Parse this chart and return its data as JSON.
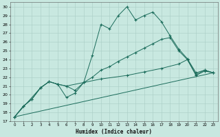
{
  "bg_color": "#c8e8e0",
  "grid_color": "#a8ccc4",
  "line_color": "#1a6b5a",
  "xlabel": "Humidex (Indice chaleur)",
  "xlim": [
    -0.5,
    23.5
  ],
  "ylim": [
    17,
    30.5
  ],
  "xticks": [
    0,
    1,
    2,
    3,
    4,
    5,
    6,
    7,
    8,
    9,
    10,
    11,
    12,
    13,
    14,
    15,
    16,
    17,
    18,
    19,
    20,
    21,
    22,
    23
  ],
  "yticks": [
    17,
    18,
    19,
    20,
    21,
    22,
    23,
    24,
    25,
    26,
    27,
    28,
    29,
    30
  ],
  "line1_x": [
    0,
    1,
    2,
    3,
    4,
    5,
    6,
    7,
    8,
    9,
    10,
    11,
    12,
    13,
    14,
    15,
    16,
    17,
    18,
    19,
    20,
    21,
    22,
    23
  ],
  "line1_y": [
    17.5,
    18.7,
    19.5,
    20.8,
    21.5,
    21.2,
    19.7,
    20.2,
    21.4,
    24.5,
    28.0,
    27.5,
    29.0,
    30.0,
    28.5,
    29.0,
    29.4,
    28.3,
    26.7,
    25.2,
    24.1,
    22.5,
    22.8,
    22.5
  ],
  "line2_x": [
    0,
    1,
    2,
    3,
    4,
    5,
    6,
    7,
    8,
    9,
    10,
    11,
    12,
    13,
    14,
    15,
    16,
    17,
    18,
    19,
    20,
    21,
    22,
    23
  ],
  "line2_y": [
    17.5,
    18.7,
    19.5,
    20.8,
    21.5,
    21.2,
    21.0,
    20.5,
    21.4,
    22.0,
    22.8,
    23.2,
    23.8,
    24.3,
    24.8,
    25.3,
    25.8,
    26.3,
    26.5,
    25.0,
    24.0,
    22.3,
    22.8,
    22.5
  ],
  "line3_x": [
    0,
    3,
    4,
    5,
    6,
    8,
    10,
    13,
    15,
    17,
    19,
    20,
    21,
    22,
    23
  ],
  "line3_y": [
    17.5,
    20.8,
    21.5,
    21.2,
    21.0,
    21.4,
    21.8,
    22.2,
    22.6,
    23.0,
    23.5,
    24.0,
    22.2,
    22.7,
    22.5
  ],
  "line4_x": [
    0,
    23
  ],
  "line4_y": [
    17.5,
    22.5
  ]
}
